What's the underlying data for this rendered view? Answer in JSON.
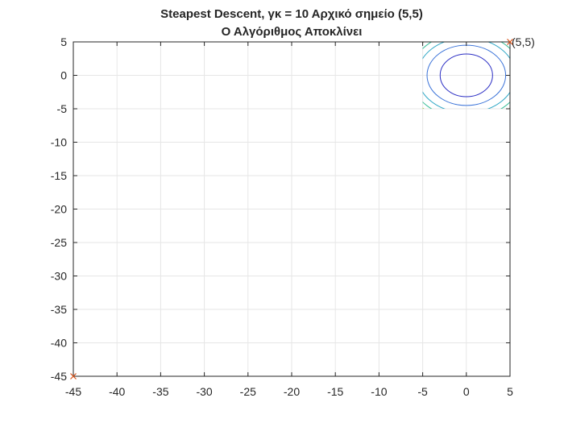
{
  "chart_data": {
    "type": "contour",
    "title": "Steapest Descent, γκ = 10 Αρχικό σημείο (5,5)",
    "subtitle": "Ο Αλγόριθμος Αποκλίνει",
    "xlabel": "",
    "ylabel": "",
    "xlim": [
      -45,
      5
    ],
    "ylim": [
      -45,
      5
    ],
    "grid": true,
    "x_ticks": [
      -45,
      -40,
      -35,
      -30,
      -25,
      -20,
      -15,
      -10,
      -5,
      0,
      5
    ],
    "y_ticks": [
      5,
      0,
      -5,
      -10,
      -15,
      -20,
      -25,
      -30,
      -35,
      -40,
      -45
    ],
    "x_tick_labels": [
      "-45",
      "-40",
      "-35",
      "-30",
      "-25",
      "-20",
      "-15",
      "-10",
      "-5",
      "0",
      "5"
    ],
    "y_tick_labels": [
      "5",
      "0",
      "-5",
      "-10",
      "-15",
      "-20",
      "-25",
      "-30",
      "-35",
      "-40",
      "-45"
    ],
    "contour_region": {
      "x": [
        -5,
        5
      ],
      "y": [
        -5,
        5
      ]
    },
    "contours": [
      {
        "rx": 3,
        "ry": 3.2,
        "color": "#2b2ec4"
      },
      {
        "rx": 4.5,
        "ry": 4.5,
        "color": "#3a72d8"
      },
      {
        "rx": 5.6,
        "ry": 5.6,
        "color": "#2fa7c6"
      },
      {
        "rx": 6.4,
        "ry": 6.4,
        "color": "#3cbf9a"
      },
      {
        "rx": 7.0,
        "ry": 7.0,
        "color": "#a6c43a"
      },
      {
        "rx": 7.6,
        "ry": 7.6,
        "color": "#e5b92a"
      }
    ],
    "points": [
      {
        "x": 5,
        "y": 5,
        "marker": "x",
        "color": "#d95319"
      },
      {
        "x": -45,
        "y": -45,
        "marker": "x",
        "color": "#d95319"
      }
    ],
    "annotations": [
      {
        "text": "(5,5)",
        "x": 5,
        "y": 5
      }
    ]
  }
}
